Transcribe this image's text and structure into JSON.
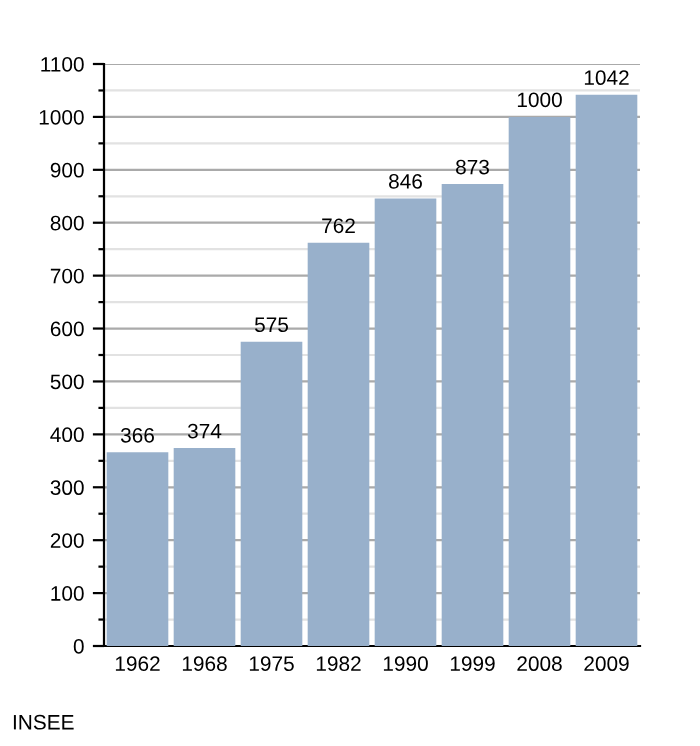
{
  "chart_data": {
    "type": "bar",
    "categories": [
      "1962",
      "1968",
      "1975",
      "1982",
      "1990",
      "1999",
      "2008",
      "2009"
    ],
    "values": [
      366,
      374,
      575,
      762,
      846,
      873,
      1000,
      1042
    ],
    "color": "#98b0cb",
    "data_labels": true,
    "grid": "y",
    "ylim": [
      0,
      1100
    ],
    "yticks": [
      0,
      {
        "value": 50,
        "label": null
      },
      100,
      {
        "value": 150,
        "label": null
      },
      200,
      {
        "value": 250,
        "label": null
      },
      300,
      {
        "value": 350,
        "label": null
      },
      400,
      {
        "value": 450,
        "label": null
      },
      500,
      {
        "value": 550,
        "label": null
      },
      600,
      {
        "value": 650,
        "label": null
      },
      700,
      {
        "value": 750,
        "label": null
      },
      800,
      {
        "value": 850,
        "label": null
      },
      900,
      {
        "value": 950,
        "label": null
      },
      1000,
      {
        "value": 1050,
        "label": null
      },
      1100
    ],
    "annotations": [
      "INSEE"
    ]
  }
}
